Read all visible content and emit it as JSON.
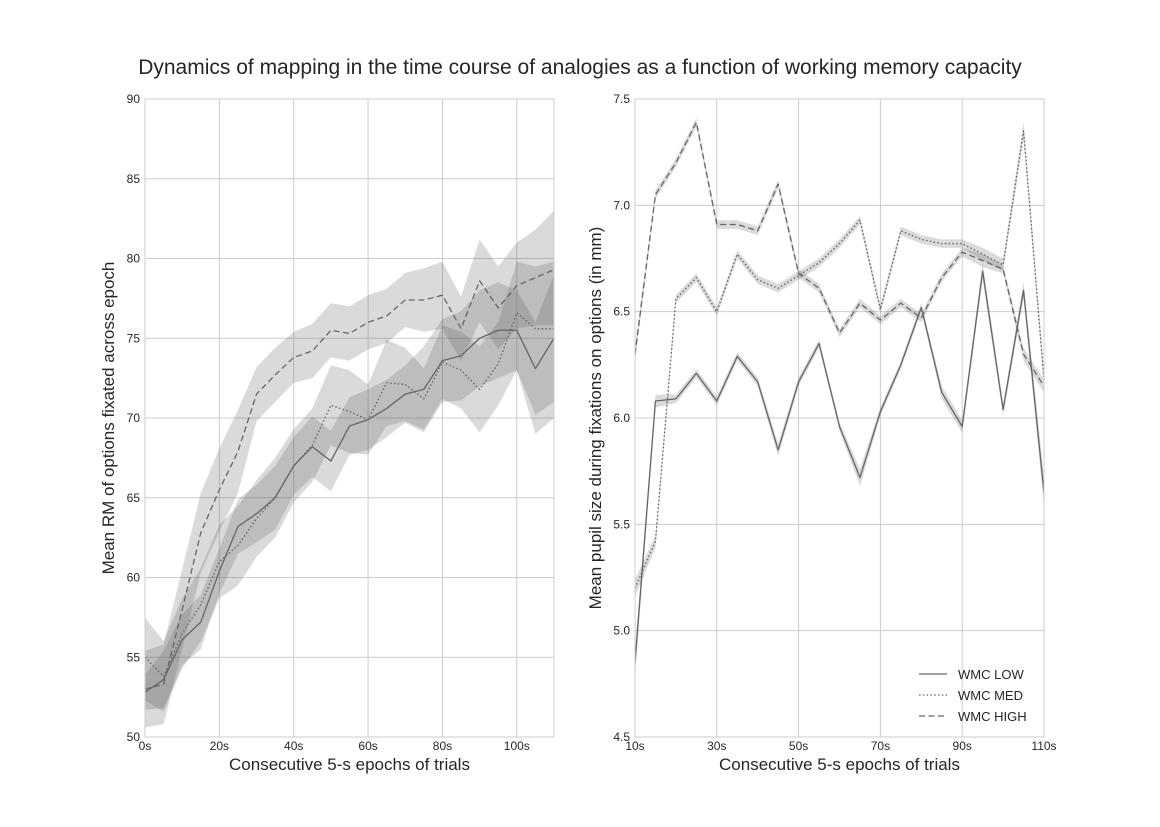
{
  "title": "Dynamics of mapping in the time course of analogies as a function of working memory capacity",
  "colors": {
    "grid": "#cccccc",
    "frame": "#cccccc",
    "line": "#666666",
    "band": "#555555"
  },
  "chart_data": [
    {
      "type": "line",
      "xlabel": "Consecutive 5-s epochs of trials",
      "ylabel": "Mean RM of options fixated across epoch",
      "xlim": [
        0,
        110
      ],
      "ylim": [
        50,
        90
      ],
      "x_ticks": [
        0,
        20,
        40,
        60,
        80,
        100
      ],
      "x_tick_labels": [
        "0s",
        "20s",
        "40s",
        "60s",
        "80s",
        "100s"
      ],
      "y_ticks": [
        50,
        55,
        60,
        65,
        70,
        75,
        80,
        85,
        90
      ],
      "y_tick_labels": [
        "50",
        "55",
        "60",
        "65",
        "70",
        "75",
        "80",
        "85",
        "90"
      ],
      "grid": true,
      "x": [
        0,
        5,
        10,
        15,
        20,
        25,
        30,
        35,
        40,
        45,
        50,
        55,
        60,
        65,
        70,
        75,
        80,
        85,
        90,
        95,
        100,
        105,
        110
      ],
      "series": [
        {
          "name": "WMC LOW",
          "style": "solid",
          "values": [
            52.8,
            53.6,
            56.1,
            57.2,
            60.4,
            63.2,
            64.0,
            65.0,
            67.0,
            68.2,
            67.3,
            69.5,
            69.9,
            70.6,
            71.5,
            71.8,
            73.6,
            73.9,
            75.0,
            75.5,
            75.5,
            73.1,
            75.0
          ],
          "ci_low": [
            51.7,
            51.8,
            54.5,
            55.5,
            59.0,
            61.5,
            62.2,
            63.0,
            65.2,
            66.3,
            65.4,
            67.7,
            68.0,
            68.8,
            69.7,
            69.1,
            71.0,
            71.1,
            72.0,
            72.5,
            73.0,
            70.2,
            71.0
          ],
          "ci_high": [
            53.9,
            55.4,
            57.7,
            58.9,
            61.8,
            64.9,
            65.8,
            67.0,
            68.8,
            70.1,
            69.2,
            71.3,
            71.8,
            72.4,
            73.3,
            74.5,
            76.2,
            76.7,
            78.0,
            78.5,
            78.0,
            76.0,
            79.0
          ]
        },
        {
          "name": "WMC MED",
          "style": "dotted",
          "values": [
            55.0,
            53.8,
            56.5,
            58.3,
            61.0,
            62.0,
            63.7,
            65.0,
            67.0,
            68.3,
            70.8,
            70.4,
            69.9,
            72.2,
            72.1,
            71.2,
            73.5,
            73.0,
            71.8,
            73.4,
            76.6,
            75.6,
            75.6
          ],
          "ci_low": [
            52.3,
            51.6,
            54.3,
            56.0,
            58.7,
            59.5,
            61.3,
            62.5,
            64.7,
            66.0,
            68.3,
            67.8,
            67.7,
            69.5,
            69.8,
            69.3,
            71.2,
            70.6,
            69.1,
            70.8,
            73.0,
            69.0,
            70.0
          ],
          "ci_high": [
            57.5,
            56.0,
            58.7,
            60.6,
            63.3,
            64.5,
            66.1,
            67.5,
            69.3,
            70.6,
            73.3,
            73.0,
            72.1,
            74.9,
            74.4,
            73.1,
            75.8,
            75.4,
            74.5,
            76.0,
            79.8,
            79.5,
            79.8
          ]
        },
        {
          "name": "WMC HIGH",
          "style": "dashed",
          "values": [
            53.0,
            53.3,
            58.0,
            62.8,
            65.5,
            67.9,
            71.5,
            72.7,
            73.8,
            74.2,
            75.5,
            75.3,
            76.0,
            76.4,
            77.4,
            77.4,
            77.7,
            75.6,
            78.6,
            76.9,
            78.3,
            78.8,
            79.3
          ],
          "ci_low": [
            50.6,
            50.8,
            55.5,
            60.3,
            62.9,
            65.3,
            69.8,
            71.0,
            72.2,
            72.5,
            73.8,
            73.6,
            74.3,
            74.7,
            75.7,
            75.4,
            75.6,
            73.6,
            76.0,
            74.3,
            75.6,
            75.8,
            75.8
          ],
          "ci_high": [
            55.4,
            55.8,
            60.5,
            65.3,
            68.1,
            70.5,
            73.2,
            74.4,
            75.4,
            75.9,
            77.2,
            77.0,
            77.7,
            78.1,
            79.1,
            79.4,
            79.8,
            77.6,
            81.2,
            79.5,
            81.0,
            81.8,
            83.0
          ]
        }
      ]
    },
    {
      "type": "line",
      "xlabel": "Consecutive 5-s epochs of trials",
      "ylabel": "Mean pupil size during fixations on options (in mm)",
      "xlim": [
        10,
        110
      ],
      "ylim": [
        4.5,
        7.5
      ],
      "x_ticks": [
        10,
        30,
        50,
        70,
        90,
        110
      ],
      "x_tick_labels": [
        "10s",
        "30s",
        "50s",
        "70s",
        "90s",
        "110s"
      ],
      "y_ticks": [
        4.5,
        5.0,
        5.5,
        6.0,
        6.5,
        7.0,
        7.5
      ],
      "y_tick_labels": [
        "4.5",
        "5.0",
        "5.5",
        "6.0",
        "6.5",
        "7.0",
        "7.5"
      ],
      "grid": true,
      "legend": "bottom-right",
      "x": [
        10,
        15,
        20,
        25,
        30,
        35,
        40,
        45,
        50,
        55,
        60,
        65,
        70,
        75,
        80,
        85,
        90,
        95,
        100,
        105,
        110
      ],
      "series": [
        {
          "name": "WMC LOW",
          "style": "solid",
          "values": [
            4.85,
            6.08,
            6.09,
            6.21,
            6.08,
            6.29,
            6.17,
            5.85,
            6.17,
            6.35,
            5.96,
            5.72,
            6.03,
            6.25,
            6.52,
            6.12,
            5.96,
            6.69,
            6.04,
            6.6,
            5.65
          ],
          "ci_low": [
            4.78,
            6.05,
            6.07,
            6.19,
            6.06,
            6.27,
            6.15,
            5.82,
            6.15,
            6.33,
            5.94,
            5.68,
            6.01,
            6.23,
            6.5,
            6.09,
            5.93,
            6.65,
            6.01,
            6.56,
            5.58
          ],
          "ci_high": [
            4.92,
            6.11,
            6.11,
            6.23,
            6.1,
            6.31,
            6.19,
            5.88,
            6.19,
            6.37,
            5.98,
            5.76,
            6.05,
            6.27,
            6.54,
            6.15,
            5.99,
            6.73,
            6.07,
            6.64,
            5.72
          ]
        },
        {
          "name": "WMC MED",
          "style": "dotted",
          "values": [
            5.2,
            5.42,
            6.56,
            6.66,
            6.5,
            6.77,
            6.65,
            6.61,
            6.67,
            6.73,
            6.82,
            6.93,
            6.51,
            6.88,
            6.84,
            6.82,
            6.82,
            6.77,
            6.72,
            7.35,
            6.18
          ],
          "ci_low": [
            5.16,
            5.39,
            6.54,
            6.64,
            6.48,
            6.75,
            6.63,
            6.59,
            6.65,
            6.71,
            6.8,
            6.91,
            6.49,
            6.86,
            6.82,
            6.8,
            6.8,
            6.74,
            6.69,
            7.31,
            6.14
          ],
          "ci_high": [
            5.24,
            5.45,
            6.58,
            6.68,
            6.52,
            6.79,
            6.67,
            6.63,
            6.69,
            6.75,
            6.84,
            6.95,
            6.53,
            6.9,
            6.86,
            6.84,
            6.84,
            6.8,
            6.75,
            7.39,
            6.22
          ]
        },
        {
          "name": "WMC HIGH",
          "style": "dashed",
          "values": [
            6.3,
            7.05,
            7.2,
            7.39,
            6.91,
            6.91,
            6.88,
            7.1,
            6.68,
            6.61,
            6.4,
            6.54,
            6.46,
            6.54,
            6.47,
            6.66,
            6.78,
            6.74,
            6.7,
            6.3,
            6.15
          ],
          "ci_low": [
            6.26,
            7.03,
            7.18,
            7.37,
            6.89,
            6.89,
            6.86,
            7.08,
            6.66,
            6.59,
            6.38,
            6.52,
            6.44,
            6.52,
            6.45,
            6.64,
            6.76,
            6.71,
            6.68,
            6.27,
            6.12
          ],
          "ci_high": [
            6.34,
            7.07,
            7.22,
            7.41,
            6.93,
            6.93,
            6.9,
            7.12,
            6.7,
            6.63,
            6.42,
            6.56,
            6.48,
            6.56,
            6.49,
            6.68,
            6.8,
            6.77,
            6.72,
            6.33,
            6.18
          ]
        }
      ]
    }
  ]
}
